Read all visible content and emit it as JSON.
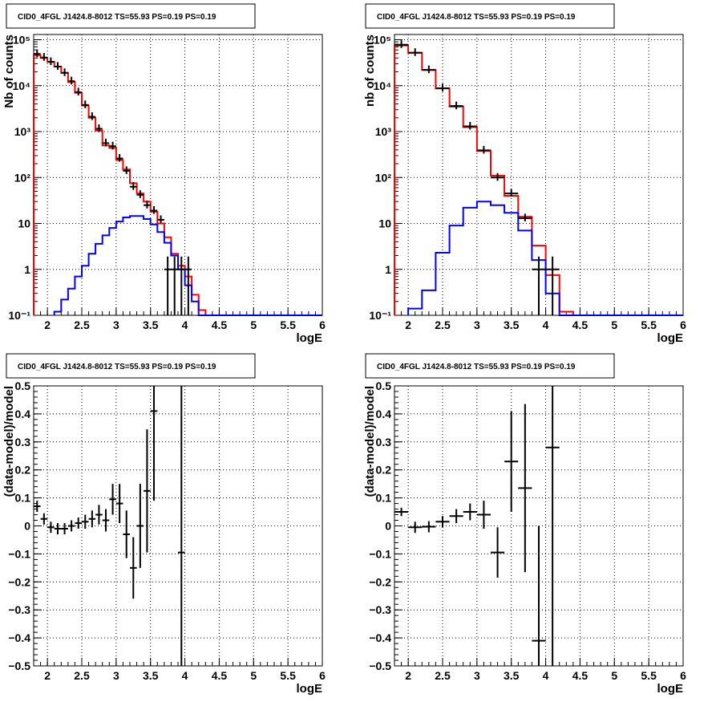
{
  "chart_data": [
    {
      "type": "line",
      "title": "CID0_4FGL J1424.8-8012 TS=55.93 PS=0.19 PS=0.19",
      "xlabel": "logE",
      "ylabel": "Nb of counts",
      "yscale": "log",
      "xlim": [
        1.8,
        6
      ],
      "ylim": [
        0.1,
        130000
      ],
      "xticks": [
        "2",
        "2.5",
        "3",
        "3.5",
        "4",
        "4.5",
        "5",
        "5.5",
        "6"
      ],
      "yticks": [
        "10⁻¹",
        "1",
        "10",
        "10²",
        "10³",
        "10⁴",
        "10⁵"
      ],
      "grid": true,
      "bin_width": 0.1,
      "series": [
        {
          "color": "#ff0000",
          "style": "step",
          "x": [
            1.85,
            1.95,
            2.05,
            2.15,
            2.25,
            2.35,
            2.45,
            2.55,
            2.65,
            2.75,
            2.85,
            2.95,
            3.05,
            3.15,
            3.25,
            3.35,
            3.45,
            3.55,
            3.65,
            3.75,
            3.85,
            3.95,
            4.05,
            4.15,
            4.25
          ],
          "y": [
            46000,
            40000,
            33000,
            26000,
            19000,
            12000,
            7000,
            3700,
            2000,
            1050,
            500,
            440,
            240,
            150,
            75,
            45,
            30,
            18,
            10,
            5,
            2.2,
            1.2,
            0.7,
            0.28,
            0.13
          ]
        },
        {
          "color": "#0000ff",
          "style": "step",
          "x": [
            2.15,
            2.25,
            2.35,
            2.45,
            2.55,
            2.65,
            2.75,
            2.85,
            2.95,
            3.05,
            3.15,
            3.25,
            3.35,
            3.45,
            3.55,
            3.65,
            3.75,
            3.85,
            3.95,
            4.05,
            4.15,
            4.25
          ],
          "y": [
            0.12,
            0.22,
            0.38,
            0.7,
            1.2,
            2.2,
            3.6,
            5.5,
            8,
            11,
            13.5,
            14.5,
            14.5,
            12.5,
            9.5,
            6.5,
            3.8,
            2,
            1,
            0.45,
            0.2,
            0.1
          ]
        },
        {
          "color": "#000000",
          "style": "points",
          "x": [
            1.85,
            1.95,
            2.05,
            2.15,
            2.25,
            2.35,
            2.45,
            2.55,
            2.65,
            2.75,
            2.85,
            2.95,
            3.05,
            3.15,
            3.25,
            3.35,
            3.45,
            3.55,
            3.65,
            3.75,
            3.85,
            3.95,
            4.05
          ],
          "y": [
            49000,
            41000,
            33000,
            26000,
            19000,
            12500,
            7200,
            3800,
            2100,
            1150,
            560,
            480,
            260,
            140,
            63,
            42,
            25,
            19,
            12,
            1,
            1,
            1,
            1
          ]
        }
      ]
    },
    {
      "type": "line",
      "title": "CID0_4FGL J1424.8-8012 TS=55.93 PS=0.19 PS=0.19",
      "xlabel": "logE",
      "ylabel": "nb of counts",
      "yscale": "log",
      "xlim": [
        1.8,
        6
      ],
      "ylim": [
        0.1,
        130000
      ],
      "xticks": [
        "2",
        "2.5",
        "3",
        "3.5",
        "4",
        "4.5",
        "5",
        "5.5",
        "6"
      ],
      "yticks": [
        "10⁻¹",
        "1",
        "10",
        "10²",
        "10³",
        "10⁴",
        "10⁵"
      ],
      "grid": true,
      "bin_width": 0.2,
      "series": [
        {
          "color": "#ff0000",
          "style": "step",
          "x": [
            1.9,
            2.1,
            2.3,
            2.5,
            2.7,
            2.9,
            3.1,
            3.3,
            3.5,
            3.7,
            3.9,
            4.1,
            4.3
          ],
          "y": [
            75000,
            52000,
            22000,
            8700,
            3500,
            1250,
            380,
            110,
            40,
            14,
            3.3,
            0.75,
            0.12
          ]
        },
        {
          "color": "#0000ff",
          "style": "step",
          "x": [
            2.1,
            2.3,
            2.5,
            2.7,
            2.9,
            3.1,
            3.3,
            3.5,
            3.7,
            3.9,
            4.1,
            4.3
          ],
          "y": [
            0.14,
            0.35,
            2.3,
            9,
            22,
            30,
            25,
            17,
            7,
            1.6,
            0.3,
            0.05
          ]
        },
        {
          "color": "#000000",
          "style": "points",
          "x": [
            1.9,
            2.1,
            2.3,
            2.5,
            2.7,
            2.9,
            3.1,
            3.3,
            3.5,
            3.7,
            3.9,
            4.1
          ],
          "y": [
            78000,
            52000,
            22000,
            8800,
            3600,
            1300,
            390,
            100,
            45,
            13,
            1,
            1
          ]
        }
      ]
    },
    {
      "type": "scatter",
      "title": "CID0_4FGL J1424.8-8012 TS=55.93 PS=0.19 PS=0.19",
      "xlabel": "logE",
      "ylabel": "(data-model)/model",
      "xlim": [
        1.8,
        6
      ],
      "ylim": [
        -0.5,
        0.5
      ],
      "xticks": [
        "2",
        "2.5",
        "3",
        "3.5",
        "4",
        "4.5",
        "5",
        "5.5",
        "6"
      ],
      "yticks": [
        "−0.5",
        "−0.4",
        "−0.3",
        "−0.2",
        "−0.1",
        "0",
        "0.1",
        "0.2",
        "0.3",
        "0.4",
        "0.5"
      ],
      "grid": true,
      "bin_width": 0.1,
      "points": [
        {
          "x": 1.85,
          "y": 0.07,
          "err": 0.02
        },
        {
          "x": 1.95,
          "y": 0.025,
          "err": 0.02
        },
        {
          "x": 2.05,
          "y": -0.005,
          "err": 0.02
        },
        {
          "x": 2.15,
          "y": -0.01,
          "err": 0.02
        },
        {
          "x": 2.25,
          "y": -0.01,
          "err": 0.02
        },
        {
          "x": 2.35,
          "y": 0.0,
          "err": 0.02
        },
        {
          "x": 2.45,
          "y": 0.01,
          "err": 0.02
        },
        {
          "x": 2.55,
          "y": 0.015,
          "err": 0.025
        },
        {
          "x": 2.65,
          "y": 0.025,
          "err": 0.03
        },
        {
          "x": 2.75,
          "y": 0.04,
          "err": 0.035
        },
        {
          "x": 2.85,
          "y": 0.02,
          "err": 0.04
        },
        {
          "x": 2.95,
          "y": 0.095,
          "err": 0.055
        },
        {
          "x": 3.05,
          "y": 0.08,
          "err": 0.07
        },
        {
          "x": 3.15,
          "y": -0.03,
          "err": 0.085
        },
        {
          "x": 3.25,
          "y": -0.15,
          "err": 0.11
        },
        {
          "x": 3.35,
          "y": 0.0,
          "err": 0.15
        },
        {
          "x": 3.45,
          "y": 0.125,
          "err": 0.22
        },
        {
          "x": 3.55,
          "y": 0.41,
          "err": 0.32
        },
        {
          "x": 3.95,
          "y": -0.095,
          "err": 0.65
        }
      ]
    },
    {
      "type": "scatter",
      "title": "CID0_4FGL J1424.8-8012 TS=55.93 PS=0.19 PS=0.19",
      "xlabel": "logE",
      "ylabel": "(data-model)/model",
      "xlim": [
        1.8,
        6
      ],
      "ylim": [
        -0.5,
        0.5
      ],
      "xticks": [
        "2",
        "2.5",
        "3",
        "3.5",
        "4",
        "4.5",
        "5",
        "5.5",
        "6"
      ],
      "yticks": [
        "−0.5",
        "−0.4",
        "−0.3",
        "−0.2",
        "−0.1",
        "0",
        "0.1",
        "0.2",
        "0.3",
        "0.4",
        "0.5"
      ],
      "grid": true,
      "bin_width": 0.2,
      "points": [
        {
          "x": 1.9,
          "y": 0.05,
          "err": 0.015
        },
        {
          "x": 2.1,
          "y": -0.005,
          "err": 0.02
        },
        {
          "x": 2.3,
          "y": -0.003,
          "err": 0.02
        },
        {
          "x": 2.5,
          "y": 0.015,
          "err": 0.02
        },
        {
          "x": 2.7,
          "y": 0.035,
          "err": 0.025
        },
        {
          "x": 2.9,
          "y": 0.05,
          "err": 0.03
        },
        {
          "x": 3.1,
          "y": 0.04,
          "err": 0.05
        },
        {
          "x": 3.3,
          "y": -0.095,
          "err": 0.09
        },
        {
          "x": 3.5,
          "y": 0.23,
          "err": 0.18
        },
        {
          "x": 3.7,
          "y": 0.135,
          "err": 0.3
        },
        {
          "x": 3.9,
          "y": -0.41,
          "err": 0.41
        },
        {
          "x": 4.1,
          "y": 0.28,
          "err": 0.8
        }
      ]
    }
  ]
}
